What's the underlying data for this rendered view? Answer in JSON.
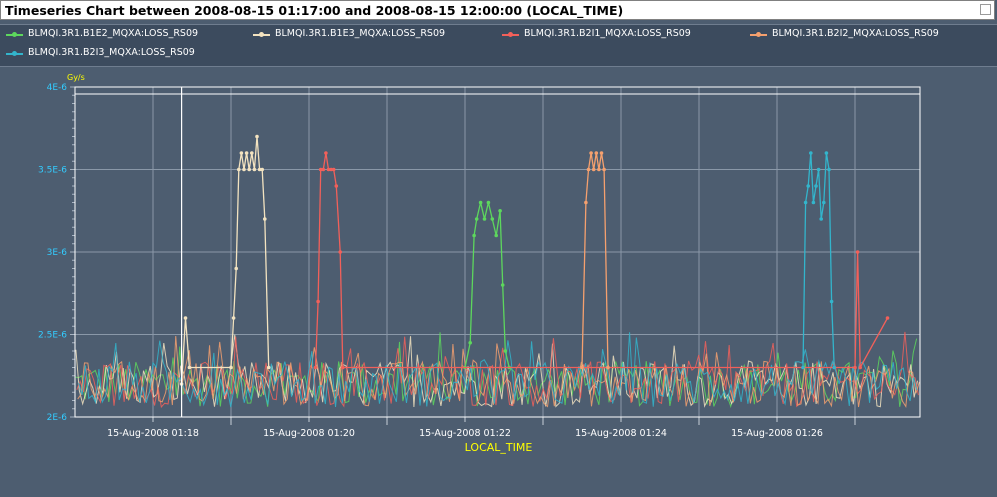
{
  "window": {
    "title": "Timeseries Chart between 2008-08-15 01:17:00 and 2008-08-15 12:00:00 (LOCAL_TIME)"
  },
  "colors": {
    "background": "#4d5d70",
    "plot_border": "#ffffff",
    "grid": "#8a98a8",
    "tick_label": "#33ccff",
    "unit_label": "#ffff00",
    "axis_title": "#ffff00",
    "legend_text": "#ffffff"
  },
  "chart_data": {
    "type": "line",
    "title": "Timeseries Chart between 2008-08-15 01:17:00 and 2008-08-15 12:00:00 (LOCAL_TIME)",
    "xlabel": "LOCAL_TIME",
    "ylabel": "Gy/s",
    "x_range": [
      "2008-08-15 01:17:00",
      "2008-08-15 01:27:50"
    ],
    "ylim": [
      2e-06,
      4e-06
    ],
    "y_ticks": [
      2e-06,
      2.5e-06,
      3e-06,
      3.5e-06,
      4e-06
    ],
    "y_tick_labels": [
      "2E-6",
      "2.5E-6",
      "3E-6",
      "3.5E-6",
      "4E-6"
    ],
    "x_ticks": [
      "2008-08-15 01:18:00",
      "2008-08-15 01:20:00",
      "2008-08-15 01:22:00",
      "2008-08-15 01:24:00",
      "2008-08-15 01:26:00"
    ],
    "x_tick_labels": [
      "15-Aug-2008 01:18",
      "15-Aug-2008 01:20",
      "15-Aug-2008 01:22",
      "15-Aug-2008 01:24",
      "15-Aug-2008 01:26"
    ],
    "grid": true,
    "legend": "top",
    "marker_line_x": "2008-08-15 01:18:22",
    "baseline": 2.2e-06,
    "series": [
      {
        "name": "BLMQI.3R1.B1E2_MQXA:LOSS_RS09",
        "color": "#5dd75d",
        "points": [
          [
            "01:22:00",
            2.3e-06
          ],
          [
            "01:22:04",
            2.45e-06
          ],
          [
            "01:22:07",
            3.1e-06
          ],
          [
            "01:22:09",
            3.2e-06
          ],
          [
            "01:22:12",
            3.3e-06
          ],
          [
            "01:22:15",
            3.2e-06
          ],
          [
            "01:22:18",
            3.3e-06
          ],
          [
            "01:22:21",
            3.2e-06
          ],
          [
            "01:22:24",
            3.1e-06
          ],
          [
            "01:22:27",
            3.25e-06
          ],
          [
            "01:22:29",
            2.8e-06
          ],
          [
            "01:22:31",
            2.4e-06
          ],
          [
            "01:22:34",
            2.3e-06
          ]
        ]
      },
      {
        "name": "BLMQI.3R1.B1E3_MQXA:LOSS_RS09",
        "color": "#f3e3c0",
        "points": [
          [
            "01:18:22",
            2.2e-06
          ],
          [
            "01:18:25",
            2.6e-06
          ],
          [
            "01:18:28",
            2.3e-06
          ],
          [
            "01:19:00",
            2.3e-06
          ],
          [
            "01:19:02",
            2.6e-06
          ],
          [
            "01:19:04",
            2.9e-06
          ],
          [
            "01:19:06",
            3.5e-06
          ],
          [
            "01:19:08",
            3.6e-06
          ],
          [
            "01:19:10",
            3.5e-06
          ],
          [
            "01:19:12",
            3.6e-06
          ],
          [
            "01:19:14",
            3.5e-06
          ],
          [
            "01:19:16",
            3.6e-06
          ],
          [
            "01:19:18",
            3.5e-06
          ],
          [
            "01:19:20",
            3.7e-06
          ],
          [
            "01:19:22",
            3.5e-06
          ],
          [
            "01:19:24",
            3.5e-06
          ],
          [
            "01:19:26",
            3.2e-06
          ],
          [
            "01:19:29",
            2.3e-06
          ]
        ]
      },
      {
        "name": "BLMQI.3R1.B2I1_MQXA:LOSS_RS09",
        "color": "#f2605a",
        "points": [
          [
            "01:20:05",
            2.3e-06
          ],
          [
            "01:20:07",
            2.7e-06
          ],
          [
            "01:20:09",
            3.5e-06
          ],
          [
            "01:20:11",
            3.5e-06
          ],
          [
            "01:20:13",
            3.6e-06
          ],
          [
            "01:20:15",
            3.5e-06
          ],
          [
            "01:20:17",
            3.5e-06
          ],
          [
            "01:20:19",
            3.5e-06
          ],
          [
            "01:20:21",
            3.4e-06
          ],
          [
            "01:20:24",
            3e-06
          ],
          [
            "01:20:26",
            2.3e-06
          ],
          [
            "01:27:00",
            2.3e-06
          ],
          [
            "01:27:02",
            3e-06
          ],
          [
            "01:27:04",
            2.3e-06
          ],
          [
            "01:27:25",
            2.6e-06
          ]
        ]
      },
      {
        "name": "BLMQI.3R1.B2I2_MQXA:LOSS_RS09",
        "color": "#f5a06e",
        "points": [
          [
            "01:23:30",
            2.3e-06
          ],
          [
            "01:23:33",
            3.3e-06
          ],
          [
            "01:23:35",
            3.5e-06
          ],
          [
            "01:23:37",
            3.6e-06
          ],
          [
            "01:23:39",
            3.5e-06
          ],
          [
            "01:23:41",
            3.6e-06
          ],
          [
            "01:23:43",
            3.5e-06
          ],
          [
            "01:23:45",
            3.6e-06
          ],
          [
            "01:23:47",
            3.5e-06
          ],
          [
            "01:23:50",
            2.3e-06
          ]
        ]
      },
      {
        "name": "BLMQI.3R1.B2I3_MQXA:LOSS_RS09",
        "color": "#33b5cc",
        "points": [
          [
            "01:26:20",
            2.3e-06
          ],
          [
            "01:26:22",
            3.3e-06
          ],
          [
            "01:26:24",
            3.4e-06
          ],
          [
            "01:26:26",
            3.6e-06
          ],
          [
            "01:26:28",
            3.3e-06
          ],
          [
            "01:26:30",
            3.4e-06
          ],
          [
            "01:26:32",
            3.5e-06
          ],
          [
            "01:26:34",
            3.2e-06
          ],
          [
            "01:26:36",
            3.3e-06
          ],
          [
            "01:26:38",
            3.6e-06
          ],
          [
            "01:26:40",
            3.5e-06
          ],
          [
            "01:26:42",
            2.7e-06
          ],
          [
            "01:26:44",
            2.3e-06
          ]
        ]
      }
    ]
  }
}
